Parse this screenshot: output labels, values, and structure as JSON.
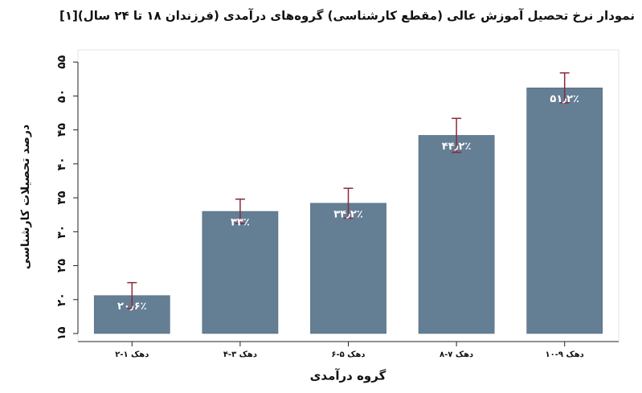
{
  "chart_data": {
    "type": "bar",
    "title": "نمودار نرخ تحصیل آموزش عالی (مقطع کارشناسی) گروه‌های درآمدی (فرزندان ۱۸ تا ۲۴ سال)[۱]",
    "x_label": "گروه درآمدی",
    "y_label": "درصد تحصیلات کارشناسی",
    "categories": [
      "دهک ۱-۲",
      "دهک ۳-۴",
      "دهک ۵-۶",
      "دهک ۷-۸",
      "دهک ۹-۱۰"
    ],
    "values": [
      20.6,
      33,
      34.2,
      44.2,
      51.2
    ],
    "value_labels": [
      "۲۰٫۶٪",
      "۳۳٪",
      "۳۴٫۲٪",
      "۴۴٫۲٪",
      "۵۱٫۲٪"
    ],
    "errors": [
      1.9,
      1.8,
      2.2,
      2.5,
      2.2
    ],
    "color": "#647e94",
    "error_color": "#8b2a3a",
    "ylim": [
      15,
      56.8
    ],
    "yticks": [
      {
        "value": 15,
        "label": "۱۵"
      },
      {
        "value": 20,
        "label": "۲۰"
      },
      {
        "value": 25,
        "label": "۲۵"
      },
      {
        "value": 30,
        "label": "۳۰"
      },
      {
        "value": 35,
        "label": "۳۵"
      },
      {
        "value": 40,
        "label": "۴۰"
      },
      {
        "value": 45,
        "label": "۴۵"
      },
      {
        "value": 50,
        "label": "۵۰"
      },
      {
        "value": 55,
        "label": "۵۵"
      }
    ]
  }
}
